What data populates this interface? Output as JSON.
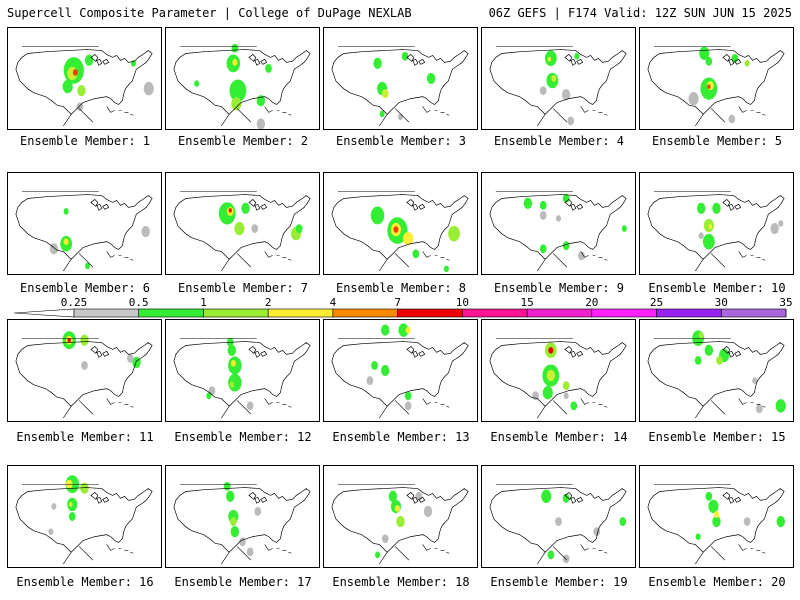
{
  "header": {
    "left": "Supercell Composite Parameter | College of DuPage NEXLAB",
    "right": "06Z GEFS | F174 Valid: 12Z SUN JUN 15 2025"
  },
  "members": [
    {
      "caption": "Ensemble Member: 1",
      "blobs": [
        [
          0.43,
          0.42,
          0.12,
          "#33ee33"
        ],
        [
          0.42,
          0.45,
          0.06,
          "#ccee33"
        ],
        [
          0.44,
          0.44,
          0.03,
          "#ee4400"
        ],
        [
          0.39,
          0.58,
          0.06,
          "#33ee33"
        ],
        [
          0.48,
          0.62,
          0.05,
          "#99ee33"
        ],
        [
          0.47,
          0.78,
          0.04,
          "#bbbbbb"
        ],
        [
          0.92,
          0.6,
          0.06,
          "#bbbbbb"
        ],
        [
          0.82,
          0.35,
          0.03,
          "#33ee33"
        ],
        [
          0.53,
          0.32,
          0.05,
          "#33ee33"
        ]
      ]
    },
    {
      "caption": "Ensemble Member: 2",
      "blobs": [
        [
          0.44,
          0.35,
          0.08,
          "#33ee33"
        ],
        [
          0.45,
          0.34,
          0.03,
          "#ffee33"
        ],
        [
          0.47,
          0.62,
          0.1,
          "#33ee33"
        ],
        [
          0.46,
          0.75,
          0.06,
          "#99ee33"
        ],
        [
          0.62,
          0.72,
          0.05,
          "#33ee33"
        ],
        [
          0.67,
          0.4,
          0.04,
          "#33ee33"
        ],
        [
          0.45,
          0.2,
          0.04,
          "#33ee33"
        ],
        [
          0.62,
          0.95,
          0.05,
          "#bbbbbb"
        ],
        [
          0.2,
          0.55,
          0.03,
          "#33ee33"
        ]
      ]
    },
    {
      "caption": "Ensemble Member: 3",
      "blobs": [
        [
          0.35,
          0.35,
          0.05,
          "#33ee33"
        ],
        [
          0.38,
          0.6,
          0.06,
          "#33ee33"
        ],
        [
          0.4,
          0.65,
          0.04,
          "#ccee33"
        ],
        [
          0.53,
          0.28,
          0.04,
          "#33ee33"
        ],
        [
          0.7,
          0.5,
          0.05,
          "#33ee33"
        ],
        [
          0.38,
          0.85,
          0.03,
          "#33ee33"
        ],
        [
          0.5,
          0.88,
          0.03,
          "#bbbbbb"
        ]
      ]
    },
    {
      "caption": "Ensemble Member: 4",
      "blobs": [
        [
          0.45,
          0.3,
          0.07,
          "#33ee33"
        ],
        [
          0.44,
          0.31,
          0.02,
          "#ffee33"
        ],
        [
          0.46,
          0.52,
          0.07,
          "#33ee33"
        ],
        [
          0.47,
          0.5,
          0.03,
          "#ccee33"
        ],
        [
          0.4,
          0.62,
          0.04,
          "#bbbbbb"
        ],
        [
          0.55,
          0.66,
          0.05,
          "#bbbbbb"
        ],
        [
          0.62,
          0.28,
          0.03,
          "#33ee33"
        ],
        [
          0.58,
          0.92,
          0.04,
          "#bbbbbb"
        ]
      ]
    },
    {
      "caption": "Ensemble Member: 5",
      "blobs": [
        [
          0.42,
          0.25,
          0.06,
          "#33ee33"
        ],
        [
          0.45,
          0.33,
          0.04,
          "#33ee33"
        ],
        [
          0.45,
          0.6,
          0.1,
          "#33ee33"
        ],
        [
          0.46,
          0.57,
          0.04,
          "#ffee33"
        ],
        [
          0.45,
          0.58,
          0.02,
          "#ee4400"
        ],
        [
          0.35,
          0.7,
          0.06,
          "#bbbbbb"
        ],
        [
          0.62,
          0.3,
          0.04,
          "#33ee33"
        ],
        [
          0.7,
          0.35,
          0.03,
          "#99ee33"
        ],
        [
          0.6,
          0.9,
          0.04,
          "#bbbbbb"
        ]
      ]
    },
    {
      "caption": "Ensemble Member: 6",
      "blobs": [
        [
          0.38,
          0.7,
          0.07,
          "#33ee33"
        ],
        [
          0.38,
          0.68,
          0.03,
          "#ffee33"
        ],
        [
          0.3,
          0.75,
          0.05,
          "#bbbbbb"
        ],
        [
          0.38,
          0.38,
          0.03,
          "#33ee33"
        ],
        [
          0.9,
          0.58,
          0.05,
          "#bbbbbb"
        ],
        [
          0.52,
          0.92,
          0.03,
          "#33ee33"
        ]
      ]
    },
    {
      "caption": "Ensemble Member: 7",
      "blobs": [
        [
          0.4,
          0.4,
          0.1,
          "#33ee33"
        ],
        [
          0.42,
          0.38,
          0.04,
          "#ffee33"
        ],
        [
          0.42,
          0.37,
          0.02,
          "#ee2200"
        ],
        [
          0.48,
          0.55,
          0.06,
          "#99ee33"
        ],
        [
          0.52,
          0.35,
          0.05,
          "#33ee33"
        ],
        [
          0.85,
          0.6,
          0.06,
          "#99ee33"
        ],
        [
          0.87,
          0.55,
          0.04,
          "#33ee33"
        ],
        [
          0.58,
          0.55,
          0.04,
          "#bbbbbb"
        ]
      ]
    },
    {
      "caption": "Ensemble Member: 8",
      "blobs": [
        [
          0.35,
          0.42,
          0.08,
          "#33ee33"
        ],
        [
          0.48,
          0.57,
          0.12,
          "#33ee33"
        ],
        [
          0.47,
          0.56,
          0.06,
          "#ffee33"
        ],
        [
          0.47,
          0.56,
          0.03,
          "#ee4400"
        ],
        [
          0.55,
          0.65,
          0.06,
          "#ffee33"
        ],
        [
          0.85,
          0.6,
          0.07,
          "#99ee33"
        ],
        [
          0.6,
          0.8,
          0.04,
          "#33ee33"
        ],
        [
          0.8,
          0.95,
          0.03,
          "#33ee33"
        ]
      ]
    },
    {
      "caption": "Ensemble Member: 9",
      "blobs": [
        [
          0.3,
          0.3,
          0.05,
          "#33ee33"
        ],
        [
          0.4,
          0.32,
          0.04,
          "#33ee33"
        ],
        [
          0.55,
          0.25,
          0.04,
          "#33ee33"
        ],
        [
          0.4,
          0.42,
          0.04,
          "#bbbbbb"
        ],
        [
          0.5,
          0.45,
          0.03,
          "#bbbbbb"
        ],
        [
          0.4,
          0.75,
          0.04,
          "#33ee33"
        ],
        [
          0.55,
          0.72,
          0.04,
          "#33ee33"
        ],
        [
          0.65,
          0.82,
          0.04,
          "#bbbbbb"
        ],
        [
          0.93,
          0.55,
          0.03,
          "#33ee33"
        ]
      ]
    },
    {
      "caption": "Ensemble Member: 10",
      "blobs": [
        [
          0.4,
          0.35,
          0.05,
          "#33ee33"
        ],
        [
          0.5,
          0.35,
          0.05,
          "#33ee33"
        ],
        [
          0.45,
          0.52,
          0.06,
          "#99ee33"
        ],
        [
          0.46,
          0.53,
          0.02,
          "#ffee33"
        ],
        [
          0.45,
          0.68,
          0.07,
          "#33ee33"
        ],
        [
          0.88,
          0.55,
          0.05,
          "#bbbbbb"
        ],
        [
          0.92,
          0.5,
          0.03,
          "#bbbbbb"
        ],
        [
          0.4,
          0.62,
          0.03,
          "#bbbbbb"
        ]
      ]
    },
    {
      "caption": "Ensemble Member: 11",
      "blobs": [
        [
          0.4,
          0.2,
          0.08,
          "#33ee33"
        ],
        [
          0.4,
          0.2,
          0.04,
          "#ffee33"
        ],
        [
          0.4,
          0.2,
          0.02,
          "#ee0000"
        ],
        [
          0.5,
          0.2,
          0.05,
          "#99ee33"
        ],
        [
          0.5,
          0.45,
          0.04,
          "#bbbbbb"
        ],
        [
          0.84,
          0.42,
          0.05,
          "#33ee33"
        ],
        [
          0.8,
          0.38,
          0.04,
          "#bbbbbb"
        ]
      ]
    },
    {
      "caption": "Ensemble Member: 12",
      "blobs": [
        [
          0.42,
          0.22,
          0.04,
          "#33ee33"
        ],
        [
          0.43,
          0.3,
          0.05,
          "#33ee33"
        ],
        [
          0.45,
          0.45,
          0.08,
          "#33ee33"
        ],
        [
          0.44,
          0.43,
          0.03,
          "#ffee33"
        ],
        [
          0.45,
          0.62,
          0.08,
          "#33ee33"
        ],
        [
          0.43,
          0.64,
          0.03,
          "#99ee33"
        ],
        [
          0.3,
          0.7,
          0.04,
          "#bbbbbb"
        ],
        [
          0.28,
          0.75,
          0.03,
          "#33ee33"
        ],
        [
          0.55,
          0.85,
          0.04,
          "#bbbbbb"
        ]
      ]
    },
    {
      "caption": "Ensemble Member: 13",
      "blobs": [
        [
          0.4,
          0.1,
          0.05,
          "#33ee33"
        ],
        [
          0.52,
          0.1,
          0.06,
          "#33ee33"
        ],
        [
          0.55,
          0.1,
          0.03,
          "#ffee33"
        ],
        [
          0.33,
          0.45,
          0.04,
          "#33ee33"
        ],
        [
          0.4,
          0.5,
          0.05,
          "#33ee33"
        ],
        [
          0.3,
          0.6,
          0.04,
          "#bbbbbb"
        ],
        [
          0.55,
          0.75,
          0.04,
          "#33ee33"
        ],
        [
          0.55,
          0.85,
          0.04,
          "#bbbbbb"
        ]
      ]
    },
    {
      "caption": "Ensemble Member: 14",
      "blobs": [
        [
          0.45,
          0.3,
          0.07,
          "#99ee33"
        ],
        [
          0.45,
          0.3,
          0.03,
          "#ee0000"
        ],
        [
          0.45,
          0.55,
          0.1,
          "#33ee33"
        ],
        [
          0.45,
          0.55,
          0.05,
          "#ccee33"
        ],
        [
          0.43,
          0.72,
          0.06,
          "#33ee33"
        ],
        [
          0.55,
          0.65,
          0.04,
          "#99ee33"
        ],
        [
          0.35,
          0.75,
          0.04,
          "#bbbbbb"
        ],
        [
          0.55,
          0.75,
          0.03,
          "#bbbbbb"
        ],
        [
          0.6,
          0.85,
          0.04,
          "#33ee33"
        ]
      ]
    },
    {
      "caption": "Ensemble Member: 15",
      "blobs": [
        [
          0.38,
          0.18,
          0.07,
          "#33ee33"
        ],
        [
          0.4,
          0.15,
          0.03,
          "#99ee33"
        ],
        [
          0.45,
          0.3,
          0.05,
          "#33ee33"
        ],
        [
          0.55,
          0.35,
          0.06,
          "#33ee33"
        ],
        [
          0.52,
          0.4,
          0.04,
          "#99ee33"
        ],
        [
          0.38,
          0.4,
          0.04,
          "#33ee33"
        ],
        [
          0.92,
          0.85,
          0.06,
          "#33ee33"
        ],
        [
          0.78,
          0.88,
          0.04,
          "#bbbbbb"
        ],
        [
          0.75,
          0.6,
          0.03,
          "#bbbbbb"
        ]
      ]
    },
    {
      "caption": "Ensemble Member: 16",
      "blobs": [
        [
          0.42,
          0.18,
          0.08,
          "#33ee33"
        ],
        [
          0.4,
          0.18,
          0.04,
          "#ffee33"
        ],
        [
          0.42,
          0.38,
          0.06,
          "#33ee33"
        ],
        [
          0.41,
          0.38,
          0.02,
          "#ffee33"
        ],
        [
          0.5,
          0.22,
          0.05,
          "#99ee33"
        ],
        [
          0.42,
          0.5,
          0.04,
          "#33ee33"
        ],
        [
          0.3,
          0.4,
          0.03,
          "#bbbbbb"
        ],
        [
          0.28,
          0.65,
          0.03,
          "#bbbbbb"
        ]
      ]
    },
    {
      "caption": "Ensemble Member: 17",
      "blobs": [
        [
          0.4,
          0.2,
          0.04,
          "#33ee33"
        ],
        [
          0.42,
          0.3,
          0.05,
          "#33ee33"
        ],
        [
          0.44,
          0.5,
          0.06,
          "#33ee33"
        ],
        [
          0.44,
          0.55,
          0.04,
          "#99ee33"
        ],
        [
          0.45,
          0.65,
          0.05,
          "#33ee33"
        ],
        [
          0.6,
          0.45,
          0.04,
          "#bbbbbb"
        ],
        [
          0.5,
          0.75,
          0.04,
          "#bbbbbb"
        ],
        [
          0.55,
          0.85,
          0.04,
          "#bbbbbb"
        ]
      ]
    },
    {
      "caption": "Ensemble Member: 18",
      "blobs": [
        [
          0.45,
          0.3,
          0.05,
          "#33ee33"
        ],
        [
          0.47,
          0.4,
          0.06,
          "#33ee33"
        ],
        [
          0.48,
          0.42,
          0.03,
          "#ffee33"
        ],
        [
          0.5,
          0.55,
          0.05,
          "#99ee33"
        ],
        [
          0.68,
          0.45,
          0.05,
          "#bbbbbb"
        ],
        [
          0.62,
          0.3,
          0.04,
          "#bbbbbb"
        ],
        [
          0.4,
          0.72,
          0.04,
          "#bbbbbb"
        ],
        [
          0.35,
          0.88,
          0.03,
          "#33ee33"
        ]
      ]
    },
    {
      "caption": "Ensemble Member: 19",
      "blobs": [
        [
          0.42,
          0.3,
          0.06,
          "#33ee33"
        ],
        [
          0.55,
          0.32,
          0.04,
          "#33ee33"
        ],
        [
          0.5,
          0.55,
          0.04,
          "#bbbbbb"
        ],
        [
          0.45,
          0.88,
          0.04,
          "#33ee33"
        ],
        [
          0.55,
          0.92,
          0.04,
          "#bbbbbb"
        ],
        [
          0.75,
          0.65,
          0.04,
          "#bbbbbb"
        ],
        [
          0.92,
          0.55,
          0.04,
          "#33ee33"
        ]
      ]
    },
    {
      "caption": "Ensemble Member: 20",
      "blobs": [
        [
          0.45,
          0.3,
          0.04,
          "#33ee33"
        ],
        [
          0.48,
          0.4,
          0.06,
          "#33ee33"
        ],
        [
          0.5,
          0.55,
          0.05,
          "#33ee33"
        ],
        [
          0.5,
          0.48,
          0.03,
          "#ffee33"
        ],
        [
          0.38,
          0.7,
          0.03,
          "#33ee33"
        ],
        [
          0.7,
          0.55,
          0.04,
          "#bbbbbb"
        ],
        [
          0.92,
          0.55,
          0.05,
          "#33ee33"
        ]
      ]
    }
  ],
  "colorbar": {
    "labels": [
      "0.25",
      "0.5",
      "1",
      "2",
      "4",
      "7",
      "10",
      "15",
      "20",
      "25",
      "30",
      "35"
    ],
    "colors": [
      "#ffffff",
      "#c8c8c8",
      "#33ee33",
      "#99ee33",
      "#ffee33",
      "#ff8800",
      "#ee0000",
      "#ff1493",
      "#ee22cc",
      "#ff22ff",
      "#9922ee",
      "#aa66dd",
      "#22ccee"
    ]
  }
}
